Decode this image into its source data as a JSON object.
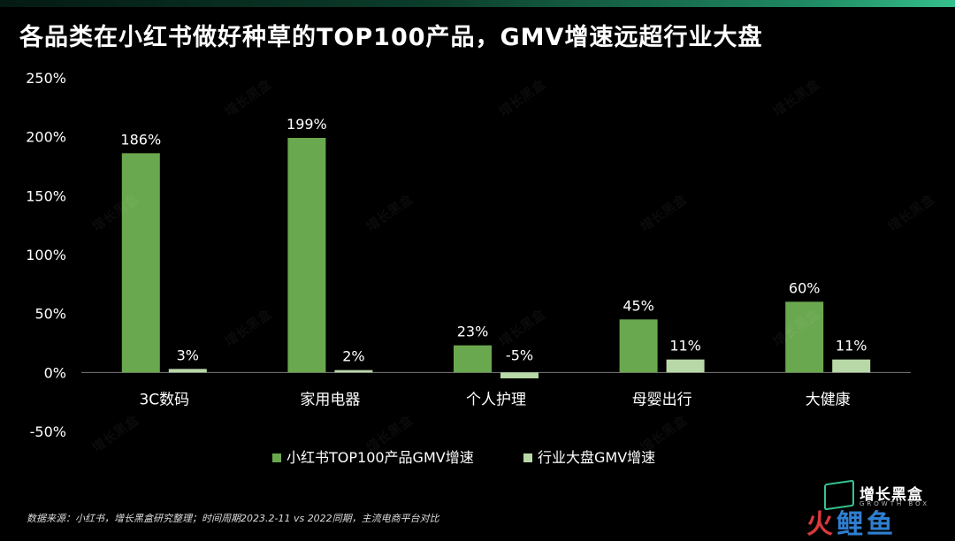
{
  "title": "各品类在小红书做好种草的TOP100产品，GMV增速远超行业大盘",
  "source_note": "数据来源：小红书，增长黑盒研究整理；时间周期2023.2-11 vs 2022同期，主流电商平台对比",
  "brand": {
    "name": "增长黑盒",
    "sub": "GROWTH BOX",
    "watermark": "增长黑盒"
  },
  "corner_badge": {
    "part1": "火",
    "part2": "鲤鱼"
  },
  "colors": {
    "background": "#000000",
    "series1": "#6aa84f",
    "series2": "#b9d8a8",
    "accent": "#36c48f"
  },
  "chart_data": {
    "type": "bar",
    "categories": [
      "3C数码",
      "家用电器",
      "个人护理",
      "母婴出行",
      "大健康"
    ],
    "series": [
      {
        "name": "小红书TOP100产品GMV增速",
        "values": [
          186,
          199,
          23,
          45,
          60
        ],
        "labels": [
          "186%",
          "199%",
          "23%",
          "45%",
          "60%"
        ]
      },
      {
        "name": "行业大盘GMV增速",
        "values": [
          3,
          2,
          -5,
          11,
          11
        ],
        "labels": [
          "3%",
          "2%",
          "-5%",
          "11%",
          "11%"
        ]
      }
    ],
    "ylim": [
      -50,
      250
    ],
    "yticks": [
      250,
      200,
      150,
      100,
      50,
      0,
      -50
    ],
    "ytick_labels": [
      "250%",
      "200%",
      "150%",
      "100%",
      "50%",
      "0%",
      "-50%"
    ],
    "legend_position": "bottom",
    "grid": false
  }
}
